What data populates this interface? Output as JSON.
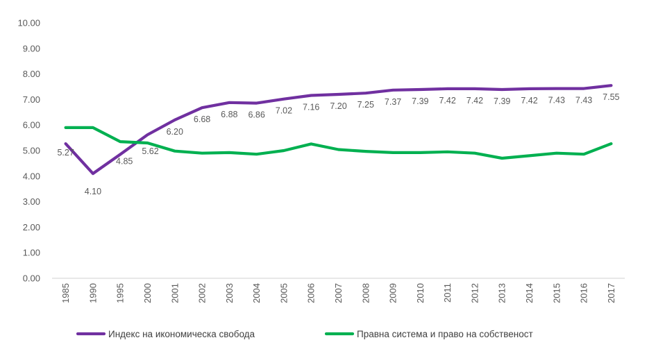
{
  "chart_data": {
    "type": "line",
    "categories": [
      "1985",
      "1990",
      "1995",
      "2000",
      "2001",
      "2002",
      "2003",
      "2004",
      "2005",
      "2006",
      "2007",
      "2008",
      "2009",
      "2010",
      "2011",
      "2012",
      "2013",
      "2014",
      "2015",
      "2016",
      "2017"
    ],
    "ylim": [
      0,
      10
    ],
    "yticks": [
      "0.00",
      "1.00",
      "2.00",
      "3.00",
      "4.00",
      "5.00",
      "6.00",
      "7.00",
      "8.00",
      "9.00",
      "10.00"
    ],
    "grid": false,
    "legend_position": "bottom",
    "series": [
      {
        "name": "Индекс на икономическа свобода",
        "color": "#7030a0",
        "values": [
          5.27,
          4.1,
          4.85,
          5.62,
          6.2,
          6.68,
          6.88,
          6.86,
          7.02,
          7.16,
          7.2,
          7.25,
          7.37,
          7.39,
          7.42,
          7.42,
          7.39,
          7.42,
          7.43,
          7.43,
          7.55
        ],
        "labels": [
          "5.27",
          "4.10",
          "4.85",
          "5.62",
          "6.20",
          "6.68",
          "6.88",
          "6.86",
          "7.02",
          "7.16",
          "7.20",
          "7.25",
          "7.37",
          "7.39",
          "7.42",
          "7.42",
          "7.39",
          "7.42",
          "7.43",
          "7.43",
          "7.55"
        ]
      },
      {
        "name": "Правна система и право на собственост",
        "color": "#00b050",
        "values": [
          5.9,
          5.9,
          5.35,
          5.3,
          4.98,
          4.9,
          4.92,
          4.86,
          5.0,
          5.26,
          5.04,
          4.97,
          4.92,
          4.92,
          4.95,
          4.9,
          4.7,
          4.8,
          4.9,
          4.86,
          5.27
        ]
      }
    ]
  }
}
